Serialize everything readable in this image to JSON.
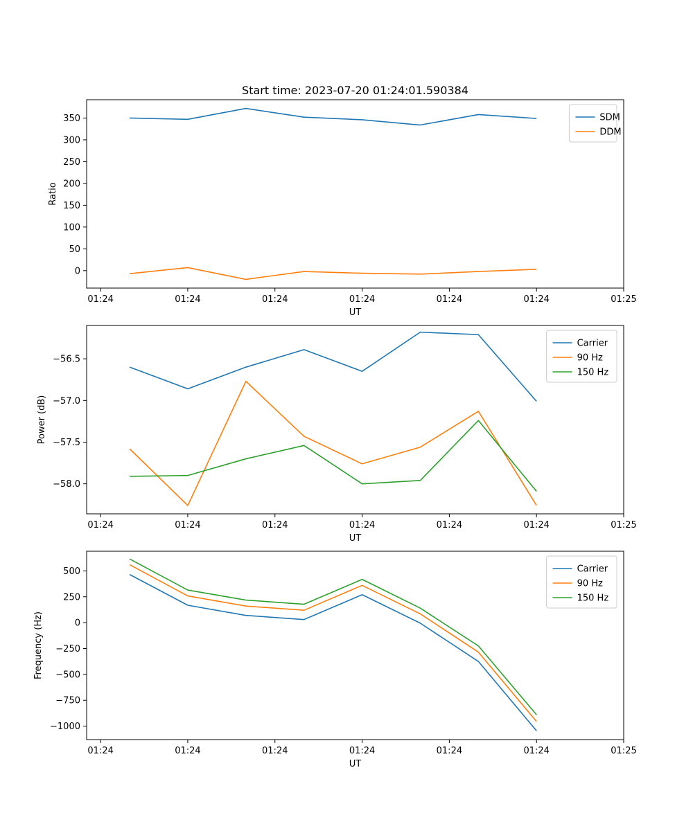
{
  "chart_data": [
    {
      "type": "line",
      "title": "Start time: 2023-07-20 01:24:01.590384",
      "xlabel": "UT",
      "ylabel": "Ratio",
      "x": [
        0.25,
        0.75,
        1.25,
        1.75,
        2.25,
        2.75,
        3.25,
        3.75
      ],
      "xlim": [
        -0.12,
        4.5
      ],
      "xticks": [
        0,
        0.75,
        1.5,
        2.25,
        3.0,
        3.75,
        4.5
      ],
      "xtick_labels": [
        "01:24",
        "01:24",
        "01:24",
        "01:24",
        "01:24",
        "01:24",
        "01:25"
      ],
      "ylim": [
        -40,
        392
      ],
      "yticks": [
        0,
        50,
        100,
        150,
        200,
        250,
        300,
        350
      ],
      "ytick_labels": [
        "0",
        "50",
        "100",
        "150",
        "200",
        "250",
        "300",
        "350"
      ],
      "legend": "top-right",
      "series": [
        {
          "name": "SDM",
          "color": "#1f77b4",
          "values": [
            350,
            347,
            372,
            352,
            346,
            334,
            358,
            349
          ]
        },
        {
          "name": "DDM",
          "color": "#ff7f0e",
          "values": [
            -7,
            7,
            -20,
            -2,
            -6,
            -8,
            -2,
            3
          ]
        }
      ]
    },
    {
      "type": "line",
      "title": "",
      "xlabel": "UT",
      "ylabel": "Power (dB)",
      "x": [
        0.25,
        0.75,
        1.25,
        1.75,
        2.25,
        2.75,
        3.25,
        3.75
      ],
      "xlim": [
        -0.12,
        4.5
      ],
      "xticks": [
        0,
        0.75,
        1.5,
        2.25,
        3.0,
        3.75,
        4.5
      ],
      "xtick_labels": [
        "01:24",
        "01:24",
        "01:24",
        "01:24",
        "01:24",
        "01:24",
        "01:25"
      ],
      "ylim": [
        -58.36,
        -56.1
      ],
      "yticks": [
        -58.0,
        -57.5,
        -57.0,
        -56.5
      ],
      "ytick_labels": [
        "−58.0",
        "−57.5",
        "−57.0",
        "−56.5"
      ],
      "legend": "top-right",
      "series": [
        {
          "name": "Carrier",
          "color": "#1f77b4",
          "values": [
            -56.6,
            -56.86,
            -56.6,
            -56.39,
            -56.65,
            -56.18,
            -56.21,
            -57.01
          ]
        },
        {
          "name": "90 Hz",
          "color": "#ff7f0e",
          "values": [
            -57.58,
            -58.26,
            -56.77,
            -57.43,
            -57.76,
            -57.56,
            -57.13,
            -58.26
          ]
        },
        {
          "name": "150 Hz",
          "color": "#2ca02c",
          "values": [
            -57.91,
            -57.9,
            -57.7,
            -57.54,
            -58.0,
            -57.96,
            -57.24,
            -58.09
          ]
        }
      ]
    },
    {
      "type": "line",
      "title": "",
      "xlabel": "UT",
      "ylabel": "Frequency (Hz)",
      "x": [
        0.25,
        0.75,
        1.25,
        1.75,
        2.25,
        2.75,
        3.25,
        3.75
      ],
      "xlim": [
        -0.12,
        4.5
      ],
      "xticks": [
        0,
        0.75,
        1.5,
        2.25,
        3.0,
        3.75,
        4.5
      ],
      "xtick_labels": [
        "01:24",
        "01:24",
        "01:24",
        "01:24",
        "01:24",
        "01:24",
        "01:25"
      ],
      "ylim": [
        -1130,
        690
      ],
      "yticks": [
        -1000,
        -750,
        -500,
        -250,
        0,
        250,
        500
      ],
      "ytick_labels": [
        "−1000",
        "−750",
        "−500",
        "−250",
        "0",
        "250",
        "500"
      ],
      "legend": "top-right",
      "series": [
        {
          "name": "Carrier",
          "color": "#1f77b4",
          "values": [
            465,
            168,
            70,
            30,
            270,
            -5,
            -375,
            -1045
          ]
        },
        {
          "name": "90 Hz",
          "color": "#ff7f0e",
          "values": [
            560,
            258,
            160,
            120,
            360,
            85,
            -285,
            -955
          ]
        },
        {
          "name": "150 Hz",
          "color": "#2ca02c",
          "values": [
            615,
            315,
            218,
            178,
            418,
            140,
            -225,
            -890
          ]
        }
      ]
    }
  ]
}
